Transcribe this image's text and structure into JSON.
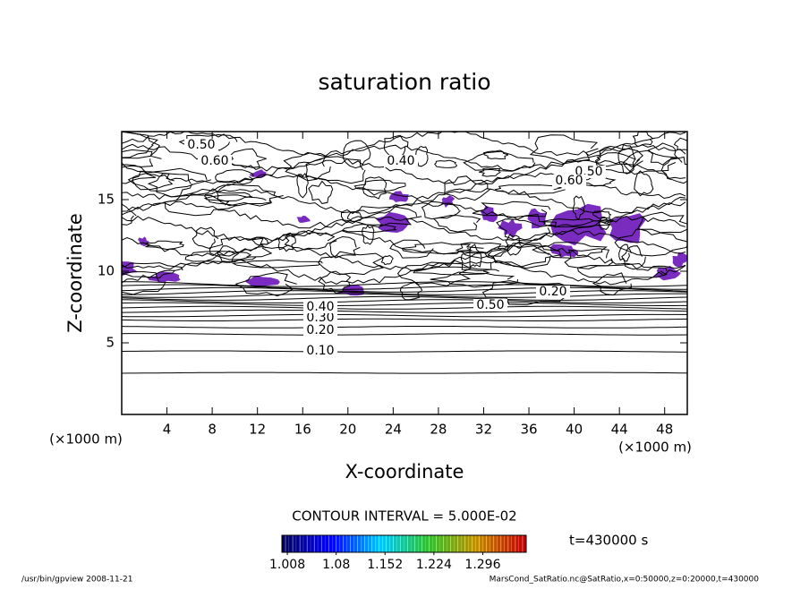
{
  "chart_data": {
    "type": "contour",
    "title": "saturation ratio",
    "x_label": "X-coordinate",
    "y_label": "Z-coordinate",
    "x_unit": "(×1000 m)",
    "y_unit": "(×1000 m)",
    "xlim": [
      0,
      50
    ],
    "xticks": [
      4,
      8,
      12,
      16,
      20,
      24,
      28,
      32,
      36,
      40,
      44,
      48
    ],
    "ylim": [
      0,
      20
    ],
    "yticks": [
      5,
      10,
      15
    ],
    "contour_labels": [
      "0.10",
      "0.20",
      "0.30",
      "0.40",
      "0.50",
      "0.50",
      "0.60",
      "0.40",
      "0.50",
      "0.60",
      "0.20"
    ],
    "contour_interval": "CONTOUR INTERVAL = 5.000E-02",
    "colorbar": {
      "lim": [
        1.0,
        1.36
      ],
      "ticks": [
        1.008,
        1.08,
        1.152,
        1.224,
        1.296
      ],
      "colors": [
        "#000060",
        "#0000ff",
        "#00c8ff",
        "#30c030",
        "#c09000",
        "#c00000"
      ]
    },
    "shade_color": "#7a2bc0",
    "time_label": "t=430000 s",
    "footer_left": "/usr/bin/gpview  2008-11-21",
    "footer_right": "MarsCond_SatRatio.nc@SatRatio,x=0:50000,z=0:20000,t=430000"
  }
}
